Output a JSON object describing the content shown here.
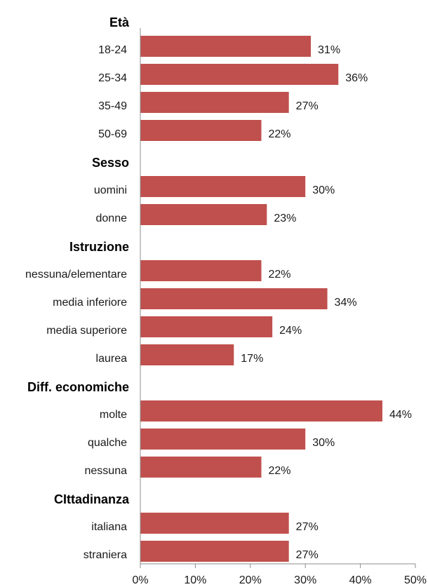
{
  "chart_data": {
    "type": "bar",
    "orientation": "horizontal",
    "bar_color": "#c0504d",
    "axis_color": "#8c8c8c",
    "xlim": [
      0,
      50
    ],
    "xticks": [
      0,
      10,
      20,
      30,
      40,
      50
    ],
    "xtick_labels": [
      "0%",
      "10%",
      "20%",
      "30%",
      "40%",
      "50%"
    ],
    "grid": false,
    "groups": [
      {
        "label": "Età",
        "categories": [
          "18-24",
          "25-34",
          "35-49",
          "50-69"
        ],
        "values": [
          31,
          36,
          27,
          22
        ],
        "value_labels": [
          "31%",
          "36%",
          "27%",
          "22%"
        ]
      },
      {
        "label": "Sesso",
        "categories": [
          "uomini",
          "donne"
        ],
        "values": [
          30,
          23
        ],
        "value_labels": [
          "30%",
          "23%"
        ]
      },
      {
        "label": "Istruzione",
        "categories": [
          "nessuna/elementare",
          "media inferiore",
          "media superiore",
          "laurea"
        ],
        "values": [
          22,
          34,
          24,
          17
        ],
        "value_labels": [
          "22%",
          "34%",
          "24%",
          "17%"
        ]
      },
      {
        "label": "Diff. economiche",
        "categories": [
          "molte",
          "qualche",
          "nessuna"
        ],
        "values": [
          44,
          30,
          22
        ],
        "value_labels": [
          "44%",
          "30%",
          "22%"
        ]
      },
      {
        "label": "CIttadinanza",
        "categories": [
          "italiana",
          "straniera"
        ],
        "values": [
          27,
          27
        ],
        "value_labels": [
          "27%",
          "27%"
        ]
      }
    ]
  }
}
